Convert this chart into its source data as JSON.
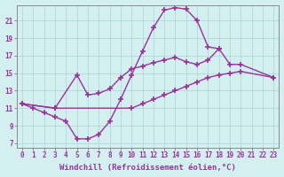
{
  "xlabel": "Windchill (Refroidissement éolien,°C)",
  "background_color": "#d4efef",
  "grid_color": "#b0d8d8",
  "line_color": "#993399",
  "xlim": [
    -0.5,
    23.5
  ],
  "ylim": [
    6.5,
    22.8
  ],
  "xticks": [
    0,
    1,
    2,
    3,
    4,
    5,
    6,
    7,
    8,
    9,
    10,
    11,
    12,
    13,
    14,
    15,
    16,
    17,
    18,
    19,
    20,
    21,
    22,
    23
  ],
  "yticks": [
    7,
    9,
    11,
    13,
    15,
    17,
    19,
    21
  ],
  "line1_x": [
    0,
    1,
    2,
    3,
    4,
    5,
    6,
    7,
    8,
    9,
    10,
    11,
    12,
    13,
    14,
    15,
    16,
    17,
    18
  ],
  "line1_y": [
    11.5,
    11.0,
    10.5,
    10.0,
    9.5,
    7.5,
    7.5,
    8.0,
    9.5,
    12.0,
    14.8,
    17.5,
    20.2,
    22.2,
    22.5,
    22.3,
    21.0,
    18.0,
    17.8
  ],
  "line2_x": [
    0,
    3,
    5,
    6,
    7,
    8,
    9,
    10,
    11,
    12,
    13,
    14,
    15,
    16,
    17,
    18,
    19,
    20,
    23
  ],
  "line2_y": [
    11.5,
    11.0,
    14.8,
    12.5,
    12.7,
    13.2,
    14.5,
    15.5,
    15.8,
    16.2,
    16.5,
    16.8,
    16.3,
    16.0,
    16.5,
    17.8,
    16.0,
    16.0,
    14.5
  ],
  "line3_x": [
    0,
    3,
    10,
    11,
    12,
    13,
    14,
    15,
    16,
    17,
    18,
    19,
    20,
    23
  ],
  "line3_y": [
    11.5,
    11.0,
    11.0,
    11.5,
    12.0,
    12.5,
    13.0,
    13.5,
    14.0,
    14.5,
    14.8,
    15.0,
    15.2,
    14.5
  ],
  "marker": "+",
  "markersize": 4,
  "linewidth": 1.0,
  "tick_fontsize": 5.5,
  "xlabel_fontsize": 6.5
}
